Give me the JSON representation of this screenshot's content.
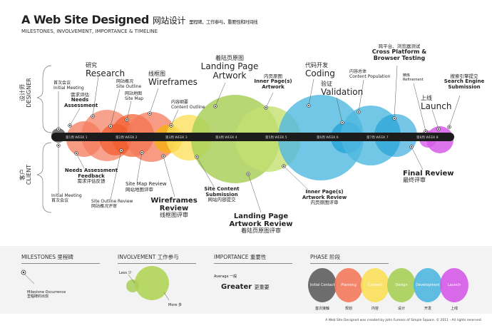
{
  "header": {
    "title": "A Web Site Designed",
    "title_cn": "网站设计",
    "title_cn_sub": "里程碑，工作参与，重要性和时间线",
    "subtitle": "MILESTONES, INVOLVEMENT, IMPORTANCE & TIMELINE"
  },
  "sides": {
    "designer_cn": "设计师",
    "designer": "DESIGNER",
    "client_cn": "客户",
    "client": "CLIENT"
  },
  "weeks": [
    "第1周 WEEK 1",
    "第2周 WEEK 2",
    "第3周 WEEK 3",
    "第4周 WEEK 4",
    "第5周 WEEK 5",
    "第6周 WEEK 6",
    "第7周 WEEK 7",
    "第8周 WEEK 8"
  ],
  "designer_milestones": [
    {
      "cn": "首次会议",
      "en": "Initial Meeting"
    },
    {
      "cn": "需求评估",
      "en": "Needs Assessment"
    },
    {
      "cn": "研究",
      "en": "Research"
    },
    {
      "cn": "网站概况",
      "en": "Site Outline"
    },
    {
      "cn": "网站地图",
      "en": "Site Map"
    },
    {
      "cn": "线框图",
      "en": "Wireframes"
    },
    {
      "cn": "内容纲要",
      "en": "Content Outline"
    },
    {
      "cn": "着陆页原图",
      "en": "Landing Page Artwork"
    },
    {
      "cn": "内页原图",
      "en": "Inner Page(s) Artwork"
    },
    {
      "cn": "代码开发",
      "en": "Coding"
    },
    {
      "cn": "验证",
      "en": "Validation"
    },
    {
      "cn": "内容总体",
      "en": "Content Population"
    },
    {
      "cn": "跨平台、浏览器测试",
      "en": "Cross Platform & Browser Testing"
    },
    {
      "cn": "精炼",
      "en": "Refinement"
    },
    {
      "cn": "上线",
      "en": "Launch"
    },
    {
      "cn": "搜索引擎提交",
      "en": "Search Engine Submission"
    }
  ],
  "client_milestones": [
    {
      "en": "Initial Meeting",
      "cn": "首次会议"
    },
    {
      "en": "Needs Assessment Feedback",
      "cn": "需求评估反馈"
    },
    {
      "en": "Site Outline Review",
      "cn": "网站概况评审"
    },
    {
      "en": "Site Map Review",
      "cn": "网站地图评审"
    },
    {
      "en": "Wireframes Review",
      "cn": "线框图评审"
    },
    {
      "en": "Site Content Submission",
      "cn": "网站内容提交"
    },
    {
      "en": "Landing Page Artwork Review",
      "cn": "着陆页原图评审"
    },
    {
      "en": "Inner Page(s) Artwork Review",
      "cn": "内页原图评审"
    },
    {
      "en": "Final Review",
      "cn": "最终评审"
    }
  ],
  "legend": {
    "milestones": {
      "title": "MILESTONES 里程碑",
      "desc_en": "Milestone Occurrence",
      "desc_cn": "里程碑的出现"
    },
    "involvement": {
      "title": "INVOLVEMENT 工作参与",
      "less": "Less 少",
      "more": "More 多"
    },
    "importance": {
      "title": "IMPORTANCE 重要性",
      "average": "Average 一般",
      "greater": "Greater",
      "greater_cn": "更重要"
    },
    "phase": {
      "title": "PHASE 阶段",
      "items": [
        {
          "en": "Initial Contact",
          "cn": "首次接触",
          "color": "#5f5f5f"
        },
        {
          "en": "Planning",
          "cn": "规划",
          "color": "#f47a5c"
        },
        {
          "en": "Content",
          "cn": "内容",
          "color": "#fbe05c"
        },
        {
          "en": "Design",
          "cn": "设计",
          "color": "#a9d05a"
        },
        {
          "en": "Development",
          "cn": "开发",
          "color": "#4fb8e0"
        },
        {
          "en": "Launch",
          "cn": "上线",
          "color": "#d65ce8"
        }
      ]
    }
  },
  "footer": "A Web Site Designed was created by John Furness of Simple Square. © 2011 - All rights reserved."
}
